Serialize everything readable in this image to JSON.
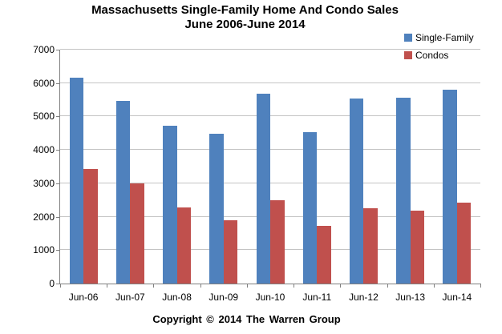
{
  "title": {
    "line1": "Massachusetts Single-Family Home And Condo Sales",
    "line2": "June 2006-June 2014"
  },
  "legend": [
    {
      "label": "Single-Family",
      "color": "#4F81BD"
    },
    {
      "label": "Condos",
      "color": "#C0504D"
    }
  ],
  "footer": {
    "copyright": "Copyright © 2014 The Warren Group"
  },
  "colors": {
    "single_family": "#4F81BD",
    "condos": "#C0504D",
    "axis": "#808080",
    "gridline": "#C4C4C4"
  },
  "chart_data": {
    "type": "bar",
    "title": "Massachusetts Single-Family Home And Condo Sales June 2006-June 2014",
    "categories": [
      "Jun-06",
      "Jun-07",
      "Jun-08",
      "Jun-09",
      "Jun-10",
      "Jun-11",
      "Jun-12",
      "Jun-13",
      "Jun-14"
    ],
    "series": [
      {
        "name": "Single-Family",
        "color": "#4F81BD",
        "values": [
          6150,
          5470,
          4730,
          4480,
          5680,
          4530,
          5530,
          5570,
          5790
        ]
      },
      {
        "name": "Condos",
        "color": "#C0504D",
        "values": [
          3440,
          3000,
          2270,
          1890,
          2490,
          1730,
          2250,
          2190,
          2430
        ]
      }
    ],
    "xlabel": "",
    "ylabel": "",
    "ylim": [
      0,
      7000
    ],
    "yticks": [
      0,
      1000,
      2000,
      3000,
      4000,
      5000,
      6000,
      7000
    ],
    "grid": true,
    "legend_position": "top-right"
  }
}
